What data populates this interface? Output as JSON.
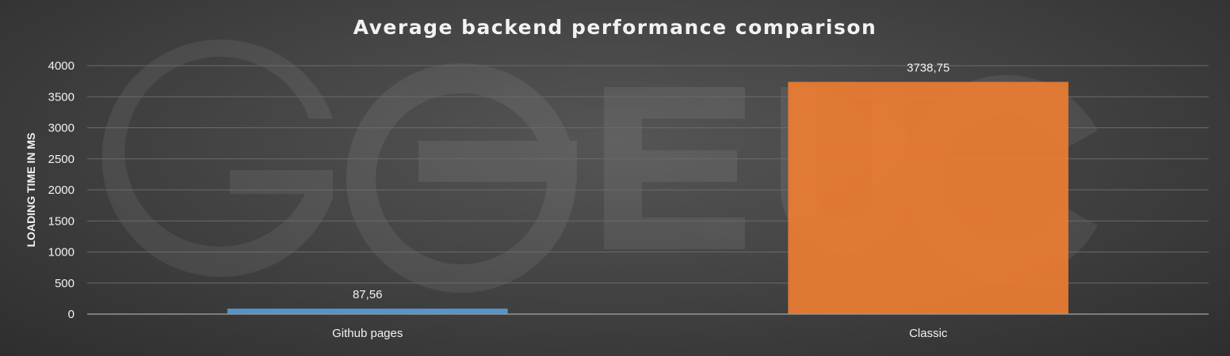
{
  "chart_data": {
    "type": "bar",
    "title": "Average backend performance comparison",
    "xlabel": "",
    "ylabel": "LOADING TIME IN MS",
    "categories": [
      "Github pages",
      "Classic"
    ],
    "values": [
      87.56,
      3738.75
    ],
    "data_labels": [
      "87,56",
      "3738,75"
    ],
    "ylim": [
      0,
      4000
    ],
    "yticks": [
      0,
      500,
      1000,
      1500,
      2000,
      2500,
      3000,
      3500,
      4000
    ],
    "bar_colors": [
      "#5b9bd5",
      "#ed7d31"
    ],
    "grid": true,
    "legend": "none",
    "watermark": "GO-EUC"
  }
}
